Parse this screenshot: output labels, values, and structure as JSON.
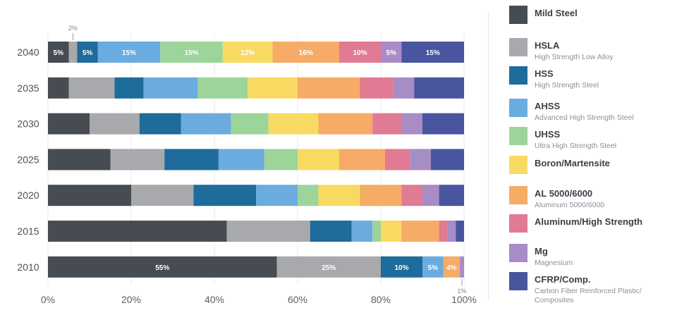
{
  "chart_data": {
    "type": "bar",
    "orientation": "horizontal",
    "stacked": true,
    "categories": [
      "2040",
      "2035",
      "2030",
      "2025",
      "2020",
      "2015",
      "2010"
    ],
    "series": [
      {
        "name": "Mild Steel",
        "color": "#474c52",
        "values": [
          5,
          5,
          10,
          15,
          20,
          43,
          55
        ]
      },
      {
        "name": "HSLA",
        "color": "#a7a9ac",
        "values": [
          2,
          11,
          12,
          13,
          15,
          20,
          25
        ]
      },
      {
        "name": "HSS",
        "color": "#1d6c9b",
        "values": [
          5,
          7,
          10,
          13,
          15,
          10,
          10
        ]
      },
      {
        "name": "AHSS",
        "color": "#6aace0",
        "values": [
          15,
          13,
          12,
          11,
          10,
          5,
          5
        ]
      },
      {
        "name": "UHSS",
        "color": "#9dd49a",
        "values": [
          15,
          12,
          9,
          8,
          5,
          2,
          0
        ]
      },
      {
        "name": "Boron/Martensite",
        "color": "#f8da63",
        "values": [
          12,
          12,
          12,
          10,
          10,
          5,
          0
        ]
      },
      {
        "name": "AL 5000/6000",
        "color": "#f6ab66",
        "values": [
          16,
          15,
          13,
          11,
          10,
          9,
          4
        ]
      },
      {
        "name": "Aluminum/High Strength",
        "color": "#e17a93",
        "values": [
          10,
          8,
          7,
          6,
          5,
          2,
          0
        ]
      },
      {
        "name": "Mg",
        "color": "#a88cc5",
        "values": [
          5,
          5,
          5,
          5,
          4,
          2,
          1
        ]
      },
      {
        "name": "CFRP/Comp.",
        "color": "#4a55a0",
        "values": [
          15,
          12,
          10,
          8,
          6,
          2,
          0
        ]
      }
    ],
    "data_labels": {
      "2040": [
        "5%",
        "2%",
        "5%",
        "15%",
        "15%",
        "12%",
        "16%",
        "10%",
        "5%",
        "15%"
      ],
      "2010": [
        "55%",
        "25%",
        "10%",
        "5%",
        "",
        "",
        "4%",
        "",
        "1%",
        ""
      ]
    },
    "xlim": [
      0,
      100
    ],
    "x_ticks": [
      "0%",
      "20%",
      "40%",
      "60%",
      "80%",
      "100%"
    ],
    "grid": "vertical",
    "legend_position": "right",
    "title": "",
    "xlabel": "",
    "ylabel": ""
  },
  "legend": [
    {
      "label": "Mild Steel",
      "sub": ""
    },
    {
      "label": "HSLA",
      "sub": "High Strength Low Alloy"
    },
    {
      "label": "HSS",
      "sub": "High Strength Steel"
    },
    {
      "label": "AHSS",
      "sub": "Advanced High Strength Steel"
    },
    {
      "label": "UHSS",
      "sub": "Ultra High Strength Steel"
    },
    {
      "label": "Boron/Martensite",
      "sub": ""
    },
    {
      "label": "AL 5000/6000",
      "sub": "Aluminum 5000/6000"
    },
    {
      "label": "Aluminum/High Strength",
      "sub": ""
    },
    {
      "label": "Mg",
      "sub": "Magnesium"
    },
    {
      "label": "CFRP/Comp.",
      "sub": "Carbon Fiber Reinforced Plastic/\nComposites"
    }
  ]
}
